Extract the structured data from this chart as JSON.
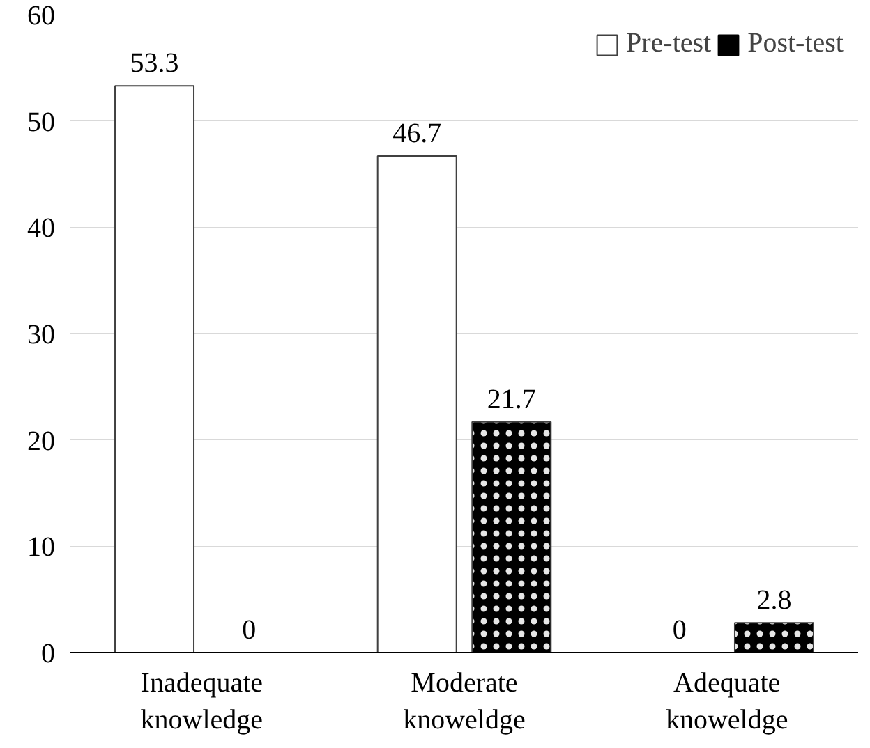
{
  "chart_data": {
    "type": "bar",
    "categories": [
      "Inadequate\nknowledge",
      "Moderate\nknoweldge",
      "Adequate\nknoweldge"
    ],
    "series": [
      {
        "name": "Pre-test",
        "color": "#ffffff",
        "values": [
          53.3,
          46.7,
          0
        ]
      },
      {
        "name": "Post-test",
        "color": "#000000",
        "values": [
          0,
          21.7,
          2.8
        ]
      }
    ],
    "ylim": [
      0,
      60
    ],
    "yticks": [
      0,
      10,
      20,
      30,
      40,
      50,
      60
    ],
    "grid": "y",
    "legend": "top right",
    "data_labels": true
  }
}
